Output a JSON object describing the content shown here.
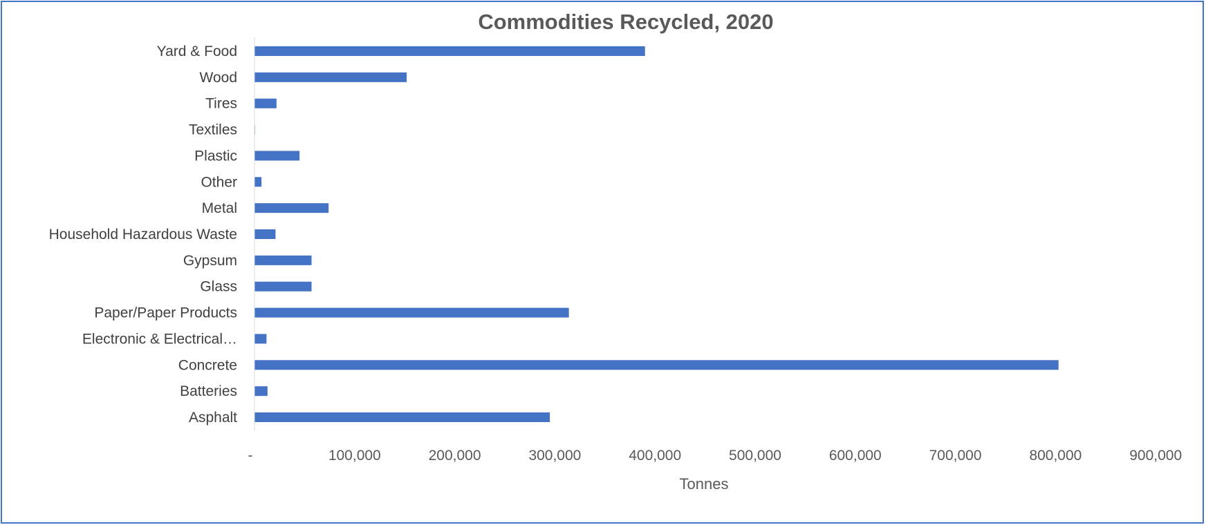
{
  "chart_data": {
    "type": "bar",
    "orientation": "horizontal",
    "title": "Commodities Recycled, 2020",
    "xlabel": "Tonnes",
    "ylabel": "",
    "xlim": [
      0,
      900000
    ],
    "x_ticks": [
      0,
      100000,
      200000,
      300000,
      400000,
      500000,
      600000,
      700000,
      800000,
      900000
    ],
    "x_tick_labels": [
      "-",
      "100,000",
      "200,000",
      "300,000",
      "400,000",
      "500,000",
      "600,000",
      "700,000",
      "800,000",
      "900,000"
    ],
    "categories": [
      "Yard & Food",
      "Wood",
      "Tires",
      "Textiles",
      "Plastic",
      "Other",
      "Metal",
      "Household Hazardous Waste",
      "Gypsum",
      "Glass",
      "Paper/Paper Products",
      "Electronic & Electrical…",
      "Concrete",
      "Batteries",
      "Asphalt"
    ],
    "values": [
      390000,
      152000,
      22000,
      500,
      45000,
      7000,
      74000,
      21000,
      57000,
      57000,
      314000,
      12000,
      803000,
      13000,
      295000
    ],
    "bar_color": "#4472c4",
    "grid": false,
    "legend": "none"
  }
}
